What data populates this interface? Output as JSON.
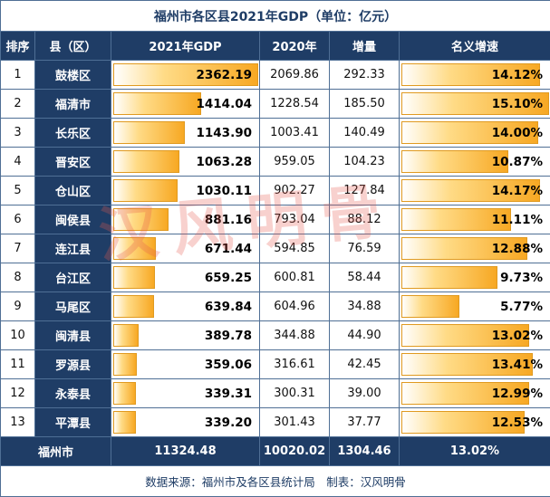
{
  "title": "福州市各区县2021年GDP（单位：亿元）",
  "headers": [
    "排序",
    "县（区）",
    "2021年GDP",
    "2020年",
    "增量",
    "名义增速"
  ],
  "rows": [
    {
      "rank": "1",
      "name": "鼓楼区",
      "gdp2021": "2362.19",
      "gdp2020": "2069.86",
      "increase": "292.33",
      "growth": "14.12%"
    },
    {
      "rank": "2",
      "name": "福清市",
      "gdp2021": "1414.04",
      "gdp2020": "1228.54",
      "increase": "185.50",
      "growth": "15.10%"
    },
    {
      "rank": "3",
      "name": "长乐区",
      "gdp2021": "1143.90",
      "gdp2020": "1003.41",
      "increase": "140.49",
      "growth": "14.00%"
    },
    {
      "rank": "4",
      "name": "晋安区",
      "gdp2021": "1063.28",
      "gdp2020": "959.05",
      "increase": "104.23",
      "growth": "10.87%"
    },
    {
      "rank": "5",
      "name": "仓山区",
      "gdp2021": "1030.11",
      "gdp2020": "902.27",
      "increase": "127.84",
      "growth": "14.17%"
    },
    {
      "rank": "6",
      "name": "闽侯县",
      "gdp2021": "881.16",
      "gdp2020": "793.04",
      "increase": "88.12",
      "growth": "11.11%"
    },
    {
      "rank": "7",
      "name": "连江县",
      "gdp2021": "671.44",
      "gdp2020": "594.85",
      "increase": "76.59",
      "growth": "12.88%"
    },
    {
      "rank": "8",
      "name": "台江区",
      "gdp2021": "659.25",
      "gdp2020": "600.81",
      "increase": "58.44",
      "growth": "9.73%"
    },
    {
      "rank": "9",
      "name": "马尾区",
      "gdp2021": "639.84",
      "gdp2020": "604.96",
      "increase": "34.88",
      "growth": "5.77%"
    },
    {
      "rank": "10",
      "name": "闽清县",
      "gdp2021": "389.78",
      "gdp2020": "344.88",
      "increase": "44.90",
      "growth": "13.02%"
    },
    {
      "rank": "11",
      "name": "罗源县",
      "gdp2021": "359.06",
      "gdp2020": "316.61",
      "increase": "42.45",
      "growth": "13.41%"
    },
    {
      "rank": "12",
      "name": "永泰县",
      "gdp2021": "339.31",
      "gdp2020": "300.31",
      "increase": "39.00",
      "growth": "12.99%"
    },
    {
      "rank": "13",
      "name": "平潭县",
      "gdp2021": "339.20",
      "gdp2020": "301.43",
      "increase": "37.77",
      "growth": "12.53%"
    }
  ],
  "total": {
    "name": "福州市",
    "gdp2021": "11324.48",
    "gdp2020": "10020.02",
    "increase": "1304.46",
    "growth": "13.02%"
  },
  "footer": "数据来源：福州市及各区县统计局　制表：汉风明骨",
  "watermark": "汉风明骨",
  "colors": {
    "header_bg": "#1f3d66",
    "bar_orange": "#f7a823",
    "watermark": "#e65a50"
  }
}
